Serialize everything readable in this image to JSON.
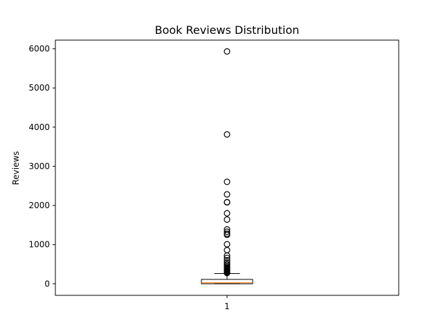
{
  "chart_data": {
    "type": "box",
    "title": "Book Reviews Distribution",
    "xlabel": "",
    "ylabel": "Reviews",
    "ylim": [
      -295,
      6222
    ],
    "yticks": [
      0,
      1000,
      2000,
      3000,
      4000,
      5000,
      6000
    ],
    "xticks": [
      "1"
    ],
    "grid": false,
    "boxes": [
      {
        "label": "1",
        "whisker_low": 0,
        "q1": 0,
        "median": 28,
        "q3": 112,
        "whisker_high": 262,
        "fliers": [
          5933,
          3813,
          2604,
          2283,
          2085,
          2080,
          1800,
          1640,
          1390,
          1330,
          1280,
          1250,
          1010,
          860,
          720,
          660,
          600,
          545,
          500,
          460,
          430,
          405,
          385,
          365,
          345,
          330,
          310,
          295,
          285,
          275
        ]
      }
    ],
    "colors": {
      "box": "#000000",
      "median": "#ff7f0e",
      "whisker": "#000000",
      "flier": "#000000"
    }
  }
}
